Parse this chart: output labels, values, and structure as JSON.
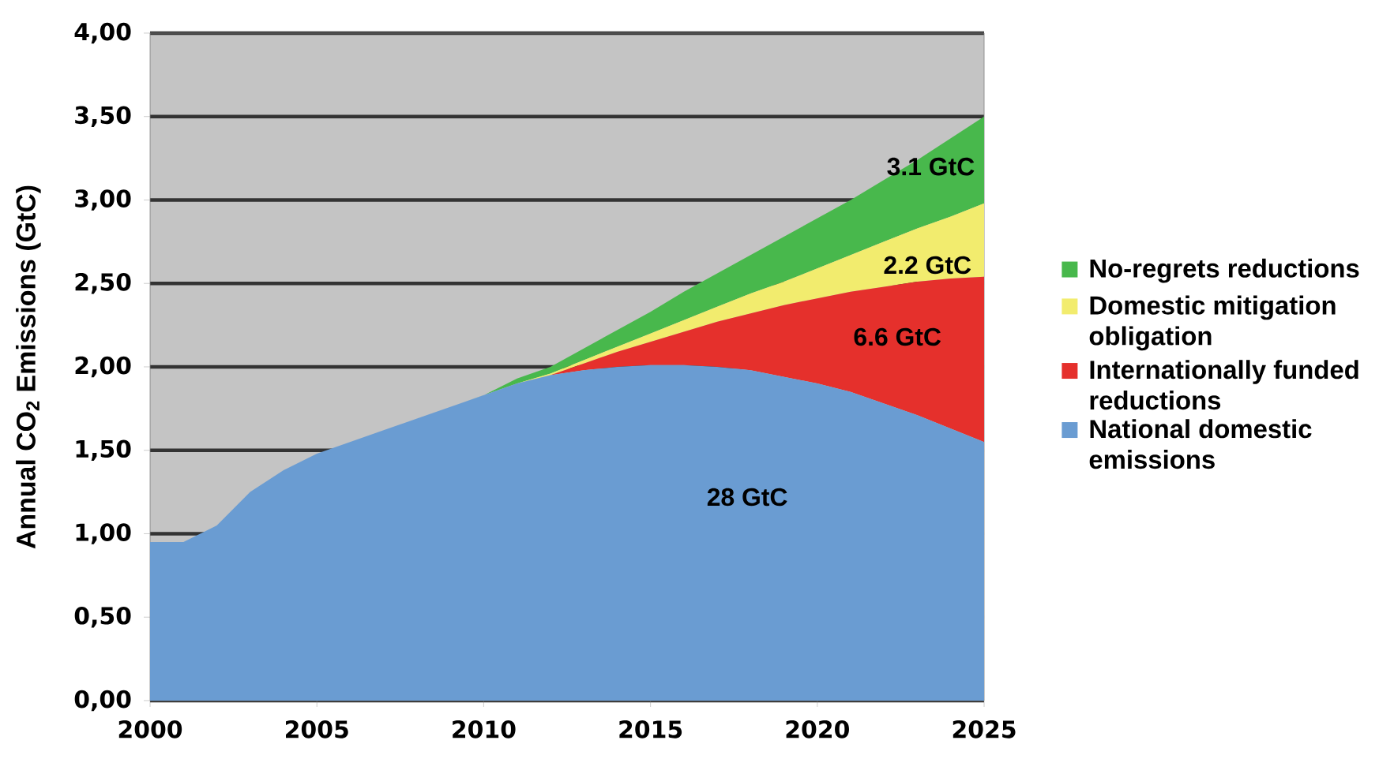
{
  "chart_data": {
    "type": "area",
    "stacked": true,
    "ylabel": "Annual CO$_{2}$ Emissions (GtC)",
    "x": [
      2000,
      2001,
      2002,
      2003,
      2004,
      2005,
      2006,
      2007,
      2008,
      2009,
      2010,
      2011,
      2012,
      2013,
      2014,
      2015,
      2016,
      2017,
      2018,
      2019,
      2020,
      2021,
      2022,
      2023,
      2024,
      2025
    ],
    "xlim": [
      2000,
      2025
    ],
    "xticks": [
      2000,
      2005,
      2010,
      2015,
      2020,
      2025
    ],
    "ylim": [
      0,
      4
    ],
    "yticks": [
      {
        "value": 0,
        "label": "0,00"
      },
      {
        "value": 0.5,
        "label": "0,50"
      },
      {
        "value": 1,
        "label": "1,00"
      },
      {
        "value": 1.5,
        "label": "1,50"
      },
      {
        "value": 2,
        "label": "2,00"
      },
      {
        "value": 2.5,
        "label": "2,50"
      },
      {
        "value": 3,
        "label": "3,00"
      },
      {
        "value": 3.5,
        "label": "3,50"
      },
      {
        "value": 4,
        "label": "4,00"
      }
    ],
    "grid": "y",
    "legend": "right",
    "series": [
      {
        "name": "National domestic emissions",
        "color": "#6a9cd2",
        "values": [
          0.95,
          0.95,
          1.05,
          1.25,
          1.38,
          1.48,
          1.55,
          1.62,
          1.69,
          1.76,
          1.83,
          1.9,
          1.95,
          1.98,
          2.0,
          2.01,
          2.01,
          2.0,
          1.98,
          1.94,
          1.9,
          1.85,
          1.78,
          1.71,
          1.63,
          1.55
        ]
      },
      {
        "name": "Internationally funded reductions",
        "color": "#e5302c",
        "values": [
          0,
          0,
          0,
          0,
          0,
          0,
          0,
          0,
          0,
          0,
          0,
          0,
          0,
          0.04,
          0.09,
          0.14,
          0.2,
          0.27,
          0.34,
          0.43,
          0.51,
          0.6,
          0.7,
          0.8,
          0.9,
          0.99
        ]
      },
      {
        "name": "Domestic mitigation obligation",
        "color": "#f2ec6e",
        "values": [
          0,
          0,
          0,
          0,
          0,
          0,
          0,
          0,
          0,
          0,
          0,
          0,
          0.01,
          0.02,
          0.03,
          0.05,
          0.07,
          0.09,
          0.12,
          0.14,
          0.18,
          0.22,
          0.27,
          0.32,
          0.37,
          0.44
        ]
      },
      {
        "name": "No-regrets reductions",
        "color": "#48b84c",
        "values": [
          0,
          0,
          0,
          0,
          0,
          0,
          0,
          0,
          0,
          0,
          0,
          0.03,
          0.04,
          0.07,
          0.1,
          0.13,
          0.17,
          0.2,
          0.23,
          0.27,
          0.3,
          0.33,
          0.37,
          0.41,
          0.47,
          0.52
        ]
      }
    ],
    "annotations": [
      "3.1 GtC",
      "2.2 GtC",
      "6.6 GtC",
      "28 GtC"
    ]
  }
}
